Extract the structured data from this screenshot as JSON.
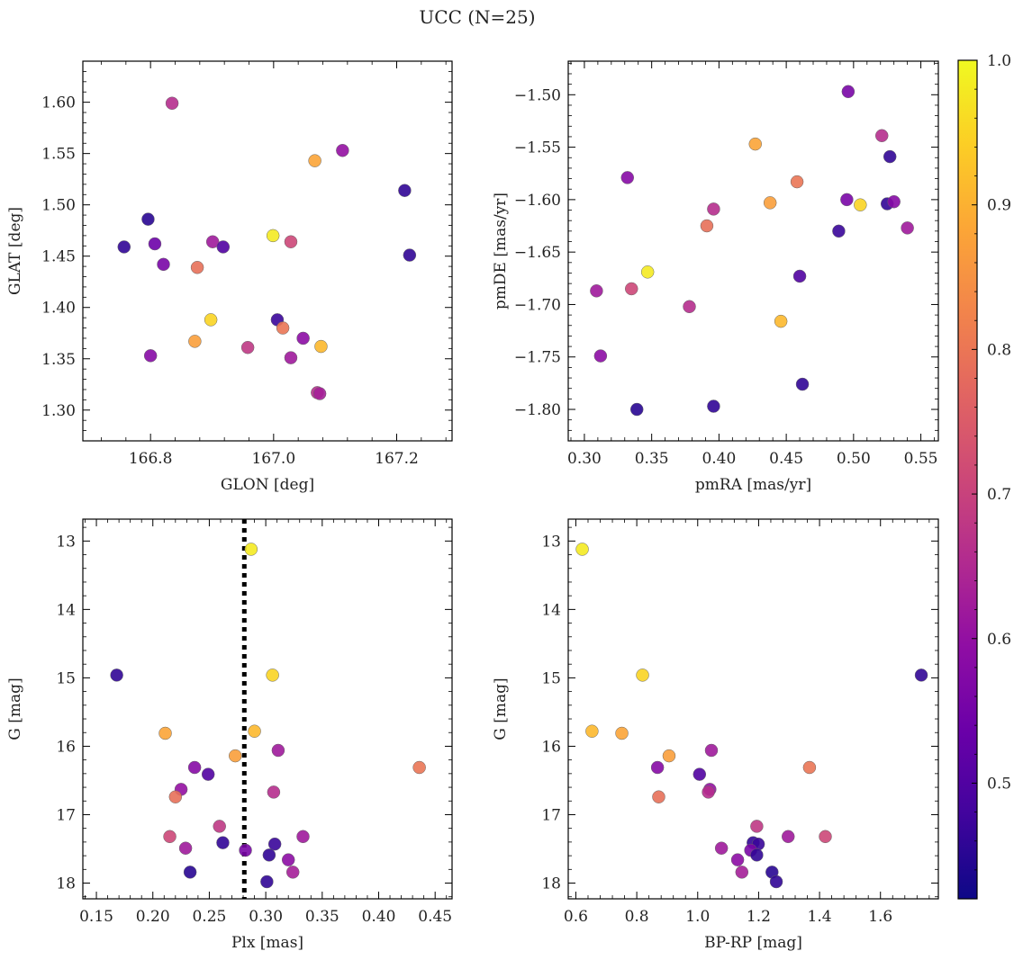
{
  "chart_data": {
    "type": "scatter",
    "title": "UCC (N=25)",
    "colorbar": {
      "colormap": "plasma",
      "range": [
        0.42,
        1.0
      ],
      "ticks": [
        0.5,
        0.6,
        0.7,
        0.8,
        0.9,
        1.0
      ],
      "tick_labels": [
        "0.5",
        "0.6",
        "0.7",
        "0.8",
        "0.9",
        "1.0"
      ]
    },
    "panels": [
      {
        "id": "glon_glat",
        "xlabel": "GLON [deg]",
        "ylabel": "GLAT [deg]",
        "xlim": [
          166.69,
          167.29
        ],
        "ylim": [
          1.27,
          1.64
        ],
        "y_inverted": false,
        "xticks": [
          166.8,
          167.0,
          167.2
        ],
        "xtick_labels": [
          "166.8",
          "167.0",
          "167.2"
        ],
        "yticks": [
          1.3,
          1.35,
          1.4,
          1.45,
          1.5,
          1.55,
          1.6
        ],
        "ytick_labels": [
          "1.30",
          "1.35",
          "1.40",
          "1.45",
          "1.50",
          "1.55",
          "1.60"
        ],
        "vline": null,
        "points": [
          {
            "x": 166.835,
            "y": 1.599,
            "c": 0.66
          },
          {
            "x": 167.067,
            "y": 1.543,
            "c": 0.88
          },
          {
            "x": 167.112,
            "y": 1.553,
            "c": 0.6
          },
          {
            "x": 167.213,
            "y": 1.514,
            "c": 0.46
          },
          {
            "x": 166.796,
            "y": 1.486,
            "c": 0.45
          },
          {
            "x": 166.757,
            "y": 1.459,
            "c": 0.46
          },
          {
            "x": 166.807,
            "y": 1.462,
            "c": 0.54
          },
          {
            "x": 166.821,
            "y": 1.442,
            "c": 0.56
          },
          {
            "x": 166.876,
            "y": 1.439,
            "c": 0.79
          },
          {
            "x": 166.901,
            "y": 1.464,
            "c": 0.62
          },
          {
            "x": 166.918,
            "y": 1.459,
            "c": 0.5
          },
          {
            "x": 166.999,
            "y": 1.47,
            "c": 0.98
          },
          {
            "x": 167.028,
            "y": 1.464,
            "c": 0.71
          },
          {
            "x": 167.221,
            "y": 1.451,
            "c": 0.46
          },
          {
            "x": 166.898,
            "y": 1.388,
            "c": 0.95
          },
          {
            "x": 167.006,
            "y": 1.388,
            "c": 0.47
          },
          {
            "x": 167.015,
            "y": 1.38,
            "c": 0.8
          },
          {
            "x": 166.872,
            "y": 1.367,
            "c": 0.87
          },
          {
            "x": 166.958,
            "y": 1.361,
            "c": 0.68
          },
          {
            "x": 167.048,
            "y": 1.37,
            "c": 0.59
          },
          {
            "x": 167.077,
            "y": 1.362,
            "c": 0.91
          },
          {
            "x": 166.8,
            "y": 1.353,
            "c": 0.58
          },
          {
            "x": 167.028,
            "y": 1.351,
            "c": 0.62
          },
          {
            "x": 167.071,
            "y": 1.317,
            "c": 0.66
          },
          {
            "x": 167.075,
            "y": 1.316,
            "c": 0.63
          }
        ]
      },
      {
        "id": "pmra_pmde",
        "xlabel": "pmRA [mas/yr]",
        "ylabel": "pmDE [mas/yr]",
        "xlim": [
          0.288,
          0.563
        ],
        "ylim": [
          -1.83,
          -1.468
        ],
        "y_inverted": false,
        "xticks": [
          0.3,
          0.35,
          0.4,
          0.45,
          0.5,
          0.55
        ],
        "xtick_labels": [
          "0.30",
          "0.35",
          "0.40",
          "0.45",
          "0.50",
          "0.55"
        ],
        "yticks": [
          -1.8,
          -1.75,
          -1.7,
          -1.65,
          -1.6,
          -1.55,
          -1.5
        ],
        "ytick_labels": [
          "−1.80",
          "−1.75",
          "−1.70",
          "−1.65",
          "−1.60",
          "−1.55",
          "−1.50"
        ],
        "vline": null,
        "points": [
          {
            "x": 0.496,
            "y": -1.497,
            "c": 0.56
          },
          {
            "x": 0.521,
            "y": -1.539,
            "c": 0.66
          },
          {
            "x": 0.427,
            "y": -1.547,
            "c": 0.88
          },
          {
            "x": 0.527,
            "y": -1.559,
            "c": 0.46
          },
          {
            "x": 0.332,
            "y": -1.579,
            "c": 0.58
          },
          {
            "x": 0.458,
            "y": -1.583,
            "c": 0.8
          },
          {
            "x": 0.495,
            "y": -1.6,
            "c": 0.56
          },
          {
            "x": 0.438,
            "y": -1.603,
            "c": 0.87
          },
          {
            "x": 0.525,
            "y": -1.604,
            "c": 0.46
          },
          {
            "x": 0.505,
            "y": -1.605,
            "c": 0.95
          },
          {
            "x": 0.53,
            "y": -1.602,
            "c": 0.58
          },
          {
            "x": 0.396,
            "y": -1.609,
            "c": 0.66
          },
          {
            "x": 0.391,
            "y": -1.625,
            "c": 0.79
          },
          {
            "x": 0.54,
            "y": -1.627,
            "c": 0.62
          },
          {
            "x": 0.489,
            "y": -1.63,
            "c": 0.47
          },
          {
            "x": 0.347,
            "y": -1.669,
            "c": 0.98
          },
          {
            "x": 0.46,
            "y": -1.673,
            "c": 0.5
          },
          {
            "x": 0.335,
            "y": -1.685,
            "c": 0.71
          },
          {
            "x": 0.309,
            "y": -1.687,
            "c": 0.62
          },
          {
            "x": 0.378,
            "y": -1.702,
            "c": 0.66
          },
          {
            "x": 0.446,
            "y": -1.716,
            "c": 0.91
          },
          {
            "x": 0.312,
            "y": -1.749,
            "c": 0.59
          },
          {
            "x": 0.462,
            "y": -1.776,
            "c": 0.46
          },
          {
            "x": 0.339,
            "y": -1.8,
            "c": 0.45
          },
          {
            "x": 0.396,
            "y": -1.797,
            "c": 0.46
          }
        ]
      },
      {
        "id": "plx_g",
        "xlabel": "Plx [mas]",
        "ylabel": "G [mag]",
        "xlim": [
          0.138,
          0.465
        ],
        "ylim": [
          18.23,
          12.68
        ],
        "y_inverted": true,
        "xticks": [
          0.15,
          0.2,
          0.25,
          0.3,
          0.35,
          0.4,
          0.45
        ],
        "xtick_labels": [
          "0.15",
          "0.20",
          "0.25",
          "0.30",
          "0.35",
          "0.40",
          "0.45"
        ],
        "yticks": [
          13,
          14,
          15,
          16,
          17,
          18
        ],
        "ytick_labels": [
          "13",
          "14",
          "15",
          "16",
          "17",
          "18"
        ],
        "vline": {
          "x": 0.281,
          "style": "dotted"
        },
        "points": [
          {
            "x": 0.287,
            "y": 13.12,
            "c": 0.98
          },
          {
            "x": 0.168,
            "y": 14.96,
            "c": 0.46
          },
          {
            "x": 0.306,
            "y": 14.96,
            "c": 0.95
          },
          {
            "x": 0.211,
            "y": 15.81,
            "c": 0.88
          },
          {
            "x": 0.29,
            "y": 15.78,
            "c": 0.91
          },
          {
            "x": 0.273,
            "y": 16.14,
            "c": 0.87
          },
          {
            "x": 0.311,
            "y": 16.06,
            "c": 0.62
          },
          {
            "x": 0.237,
            "y": 16.31,
            "c": 0.58
          },
          {
            "x": 0.436,
            "y": 16.31,
            "c": 0.8
          },
          {
            "x": 0.249,
            "y": 16.41,
            "c": 0.5
          },
          {
            "x": 0.225,
            "y": 16.63,
            "c": 0.6
          },
          {
            "x": 0.307,
            "y": 16.67,
            "c": 0.66
          },
          {
            "x": 0.22,
            "y": 16.74,
            "c": 0.79
          },
          {
            "x": 0.259,
            "y": 17.17,
            "c": 0.68
          },
          {
            "x": 0.215,
            "y": 17.32,
            "c": 0.71
          },
          {
            "x": 0.333,
            "y": 17.32,
            "c": 0.62
          },
          {
            "x": 0.262,
            "y": 17.41,
            "c": 0.46
          },
          {
            "x": 0.308,
            "y": 17.43,
            "c": 0.47
          },
          {
            "x": 0.229,
            "y": 17.49,
            "c": 0.62
          },
          {
            "x": 0.282,
            "y": 17.52,
            "c": 0.56
          },
          {
            "x": 0.303,
            "y": 17.59,
            "c": 0.46
          },
          {
            "x": 0.32,
            "y": 17.66,
            "c": 0.59
          },
          {
            "x": 0.233,
            "y": 17.84,
            "c": 0.45
          },
          {
            "x": 0.324,
            "y": 17.84,
            "c": 0.63
          },
          {
            "x": 0.301,
            "y": 17.98,
            "c": 0.46
          }
        ]
      },
      {
        "id": "bprp_g",
        "xlabel": "BP-RP [mag]",
        "ylabel": "G [mag]",
        "xlim": [
          0.575,
          1.79
        ],
        "ylim": [
          18.23,
          12.68
        ],
        "y_inverted": true,
        "xticks": [
          0.6,
          0.8,
          1.0,
          1.2,
          1.4,
          1.6
        ],
        "xtick_labels": [
          "0.6",
          "0.8",
          "1.0",
          "1.2",
          "1.4",
          "1.6"
        ],
        "yticks": [
          13,
          14,
          15,
          16,
          17,
          18
        ],
        "ytick_labels": [
          "13",
          "14",
          "15",
          "16",
          "17",
          "18"
        ],
        "vline": null,
        "points": [
          {
            "x": 0.621,
            "y": 13.12,
            "c": 0.98
          },
          {
            "x": 0.819,
            "y": 14.96,
            "c": 0.95
          },
          {
            "x": 1.734,
            "y": 14.96,
            "c": 0.46
          },
          {
            "x": 0.653,
            "y": 15.78,
            "c": 0.91
          },
          {
            "x": 0.751,
            "y": 15.81,
            "c": 0.88
          },
          {
            "x": 0.906,
            "y": 16.14,
            "c": 0.87
          },
          {
            "x": 1.045,
            "y": 16.06,
            "c": 0.62
          },
          {
            "x": 0.868,
            "y": 16.31,
            "c": 0.58
          },
          {
            "x": 1.367,
            "y": 16.31,
            "c": 0.8
          },
          {
            "x": 1.006,
            "y": 16.41,
            "c": 0.5
          },
          {
            "x": 1.04,
            "y": 16.63,
            "c": 0.6
          },
          {
            "x": 1.035,
            "y": 16.67,
            "c": 0.66
          },
          {
            "x": 0.872,
            "y": 16.74,
            "c": 0.79
          },
          {
            "x": 1.194,
            "y": 17.17,
            "c": 0.68
          },
          {
            "x": 1.297,
            "y": 17.32,
            "c": 0.62
          },
          {
            "x": 1.419,
            "y": 17.32,
            "c": 0.71
          },
          {
            "x": 1.182,
            "y": 17.41,
            "c": 0.46
          },
          {
            "x": 1.199,
            "y": 17.43,
            "c": 0.47
          },
          {
            "x": 1.078,
            "y": 17.49,
            "c": 0.62
          },
          {
            "x": 1.174,
            "y": 17.52,
            "c": 0.56
          },
          {
            "x": 1.194,
            "y": 17.59,
            "c": 0.46
          },
          {
            "x": 1.131,
            "y": 17.66,
            "c": 0.59
          },
          {
            "x": 1.145,
            "y": 17.84,
            "c": 0.63
          },
          {
            "x": 1.244,
            "y": 17.84,
            "c": 0.45
          },
          {
            "x": 1.258,
            "y": 17.98,
            "c": 0.46
          }
        ]
      }
    ]
  }
}
